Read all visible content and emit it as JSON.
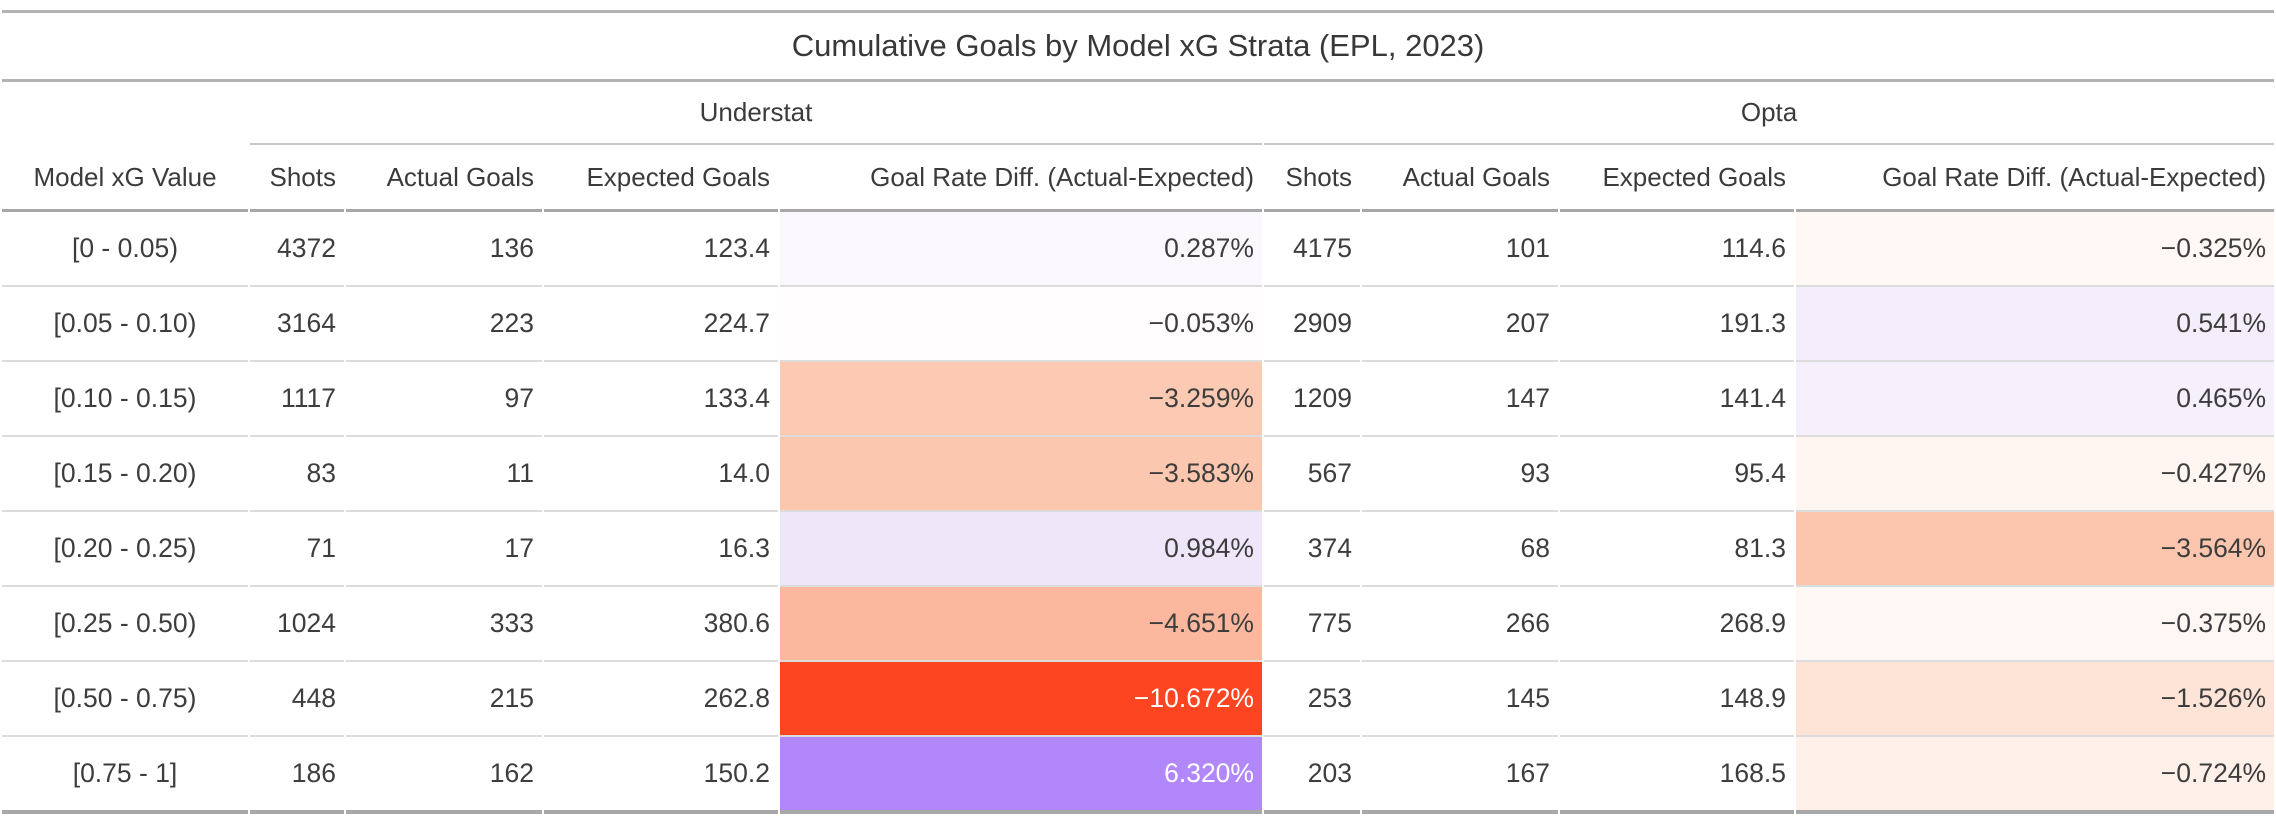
{
  "title": "Cumulative Goals by Model xG Strata (EPL, 2023)",
  "groups": [
    {
      "label": "Understat"
    },
    {
      "label": "Opta"
    }
  ],
  "columns": {
    "stub": "Model xG Value",
    "metrics": [
      "Shots",
      "Actual Goals",
      "Expected Goals",
      "Goal Rate Diff. (Actual-Expected)"
    ]
  },
  "palette": {
    "strong_negative": "#fd4522",
    "strong_positive": "#b287fb",
    "neutral_text": "#3d3d3d",
    "inverse_text": "#ffffff"
  },
  "rows": [
    {
      "strata": "[0 - 0.05)",
      "u": {
        "shots": "4372",
        "actual": "136",
        "expected": "123.4",
        "diff": "0.287%",
        "diff_bg": "#faf7fd",
        "diff_fg": "#3d3d3d"
      },
      "o": {
        "shots": "4175",
        "actual": "101",
        "expected": "114.6",
        "diff": "−0.325%",
        "diff_bg": "#fff8f4",
        "diff_fg": "#3d3d3d"
      }
    },
    {
      "strata": "[0.05 - 0.10)",
      "u": {
        "shots": "3164",
        "actual": "223",
        "expected": "224.7",
        "diff": "−0.053%",
        "diff_bg": "#fffdfd",
        "diff_fg": "#3d3d3d"
      },
      "o": {
        "shots": "2909",
        "actual": "207",
        "expected": "191.3",
        "diff": "0.541%",
        "diff_bg": "#f4eefc",
        "diff_fg": "#3d3d3d"
      }
    },
    {
      "strata": "[0.10 - 0.15)",
      "u": {
        "shots": "1117",
        "actual": "97",
        "expected": "133.4",
        "diff": "−3.259%",
        "diff_bg": "#fcc9b2",
        "diff_fg": "#3d3d3d"
      },
      "o": {
        "shots": "1209",
        "actual": "147",
        "expected": "141.4",
        "diff": "0.465%",
        "diff_bg": "#f5f0fc",
        "diff_fg": "#3d3d3d"
      }
    },
    {
      "strata": "[0.15 - 0.20)",
      "u": {
        "shots": "83",
        "actual": "11",
        "expected": "14.0",
        "diff": "−3.583%",
        "diff_bg": "#fcc7af",
        "diff_fg": "#3d3d3d"
      },
      "o": {
        "shots": "567",
        "actual": "93",
        "expected": "95.4",
        "diff": "−0.427%",
        "diff_bg": "#fff6f1",
        "diff_fg": "#3d3d3d"
      }
    },
    {
      "strata": "[0.20 - 0.25)",
      "u": {
        "shots": "71",
        "actual": "17",
        "expected": "16.3",
        "diff": "0.984%",
        "diff_bg": "#eee7fa",
        "diff_fg": "#3d3d3d"
      },
      "o": {
        "shots": "374",
        "actual": "68",
        "expected": "81.3",
        "diff": "−3.564%",
        "diff_bg": "#fcc5ad",
        "diff_fg": "#3d3d3d"
      }
    },
    {
      "strata": "[0.25 - 0.50)",
      "u": {
        "shots": "1024",
        "actual": "333",
        "expected": "380.6",
        "diff": "−4.651%",
        "diff_bg": "#fcb89f",
        "diff_fg": "#3d3d3d"
      },
      "o": {
        "shots": "775",
        "actual": "266",
        "expected": "268.9",
        "diff": "−0.375%",
        "diff_bg": "#fff7f3",
        "diff_fg": "#3d3d3d"
      }
    },
    {
      "strata": "[0.50 - 0.75)",
      "u": {
        "shots": "448",
        "actual": "215",
        "expected": "262.8",
        "diff": "−10.672%",
        "diff_bg": "#fd4522",
        "diff_fg": "#ffffff"
      },
      "o": {
        "shots": "253",
        "actual": "145",
        "expected": "148.9",
        "diff": "−1.526%",
        "diff_bg": "#fee3d7",
        "diff_fg": "#3d3d3d"
      }
    },
    {
      "strata": "[0.75 - 1]",
      "u": {
        "shots": "186",
        "actual": "162",
        "expected": "150.2",
        "diff": "6.320%",
        "diff_bg": "#b287fb",
        "diff_fg": "#ffffff"
      },
      "o": {
        "shots": "203",
        "actual": "167",
        "expected": "168.5",
        "diff": "−0.724%",
        "diff_bg": "#fff0e9",
        "diff_fg": "#3d3d3d"
      }
    }
  ],
  "chart_data": {
    "type": "table",
    "title": "Cumulative Goals by Model xG Strata (EPL, 2023)",
    "column_groups": [
      "Understat",
      "Opta"
    ],
    "columns": [
      "Model xG Value",
      "Shots",
      "Actual Goals",
      "Expected Goals",
      "Goal Rate Diff. (Actual-Expected)",
      "Shots",
      "Actual Goals",
      "Expected Goals",
      "Goal Rate Diff. (Actual-Expected)"
    ],
    "rows": [
      [
        "[0 - 0.05)",
        4372,
        136,
        123.4,
        "0.287%",
        4175,
        101,
        114.6,
        "−0.325%"
      ],
      [
        "[0.05 - 0.10)",
        3164,
        223,
        224.7,
        "−0.053%",
        2909,
        207,
        191.3,
        "0.541%"
      ],
      [
        "[0.10 - 0.15)",
        1117,
        97,
        133.4,
        "−3.259%",
        1209,
        147,
        141.4,
        "0.465%"
      ],
      [
        "[0.15 - 0.20)",
        83,
        11,
        14.0,
        "−3.583%",
        567,
        93,
        95.4,
        "−0.427%"
      ],
      [
        "[0.20 - 0.25)",
        71,
        17,
        16.3,
        "0.984%",
        374,
        68,
        81.3,
        "−3.564%"
      ],
      [
        "[0.25 - 0.50)",
        1024,
        333,
        380.6,
        "−4.651%",
        775,
        266,
        268.9,
        "−0.375%"
      ],
      [
        "[0.50 - 0.75)",
        448,
        215,
        262.8,
        "−10.672%",
        253,
        145,
        148.9,
        "−1.526%"
      ],
      [
        "[0.75 - 1]",
        186,
        162,
        150.2,
        "6.320%",
        203,
        167,
        168.5,
        "−0.724%"
      ]
    ],
    "legend_note": "Diff cell shading: diverging scale — orange/red = actual below expected, purple = actual above expected"
  }
}
